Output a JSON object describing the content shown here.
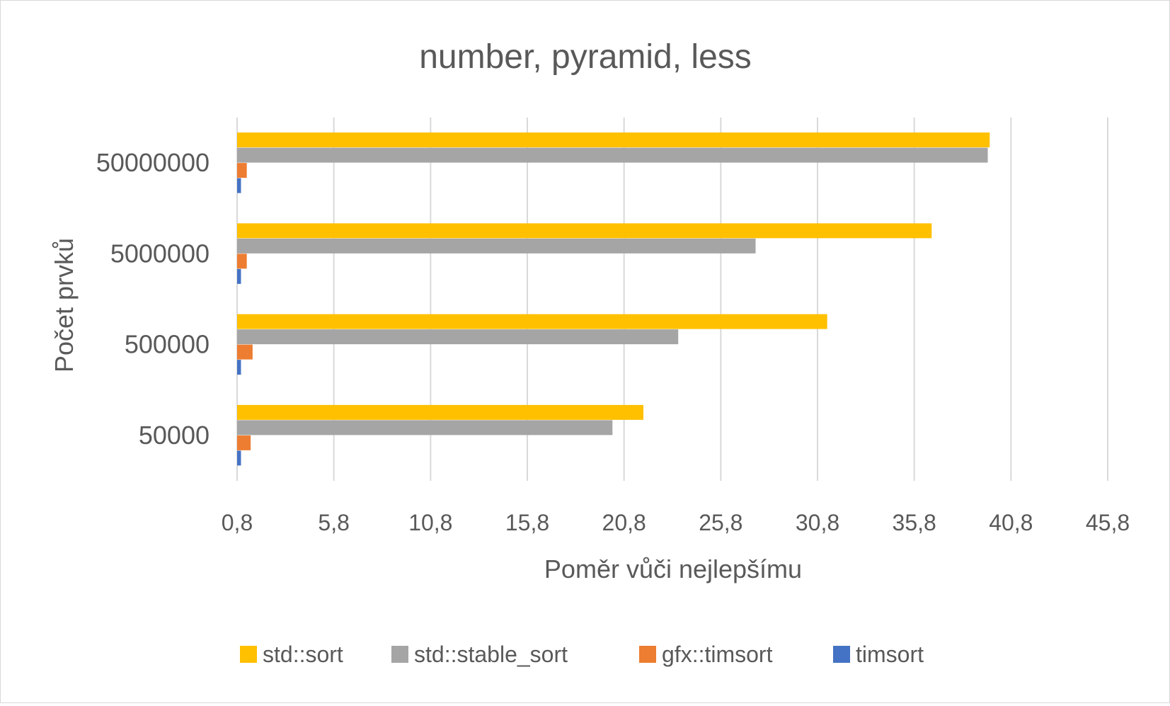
{
  "chart_data": {
    "type": "bar",
    "orientation": "horizontal",
    "title": "number, pyramid, less",
    "xlabel": "Poměr vůči nejlepšímu",
    "ylabel": "Počet prvků",
    "categories": [
      "50000",
      "500000",
      "5000000",
      "50000000"
    ],
    "xticks": [
      "0,8",
      "5,8",
      "10,8",
      "15,8",
      "20,8",
      "25,8",
      "30,8",
      "35,8",
      "40,8",
      "45,8"
    ],
    "xlim": [
      0.8,
      45.8
    ],
    "grid": true,
    "legend": "bottom",
    "series": [
      {
        "name": "std::sort",
        "color": "#ffc000",
        "values": [
          21.8,
          31.3,
          36.7,
          39.7
        ]
      },
      {
        "name": "std::stable_sort",
        "color": "#a5a5a5",
        "values": [
          20.2,
          23.6,
          27.6,
          39.6
        ]
      },
      {
        "name": "gfx::timsort",
        "color": "#ed7d31",
        "values": [
          1.5,
          1.6,
          1.3,
          1.3
        ]
      },
      {
        "name": "timsort",
        "color": "#4472c4",
        "values": [
          1.0,
          1.0,
          1.0,
          1.0
        ]
      }
    ]
  }
}
